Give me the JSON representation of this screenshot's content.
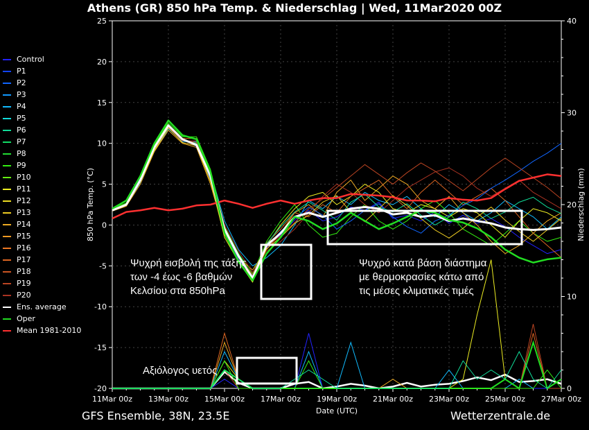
{
  "title": "Athens  (GR)  850 hPa Temp. & Niederschlag | Wed, 11Mar2020 00Z",
  "footer": {
    "model": "GFS Ensemble, 38N, 23.5E",
    "site": "Wetterzentrale.de"
  },
  "colors": {
    "background": "#000000",
    "box": "#ffffff",
    "mean": "#ff3030",
    "ens_avg": "#ffffff",
    "oper": "#22dd22"
  },
  "legend": [
    {
      "name": "Control",
      "color": "#2222ff"
    },
    {
      "name": "P1",
      "color": "#1144ff"
    },
    {
      "name": "P2",
      "color": "#1166ff"
    },
    {
      "name": "P3",
      "color": "#1199ff"
    },
    {
      "name": "P4",
      "color": "#11bbff"
    },
    {
      "name": "P5",
      "color": "#11dddd"
    },
    {
      "name": "P6",
      "color": "#11dd99"
    },
    {
      "name": "P7",
      "color": "#11dd66"
    },
    {
      "name": "P8",
      "color": "#22dd33"
    },
    {
      "name": "P9",
      "color": "#33ee11"
    },
    {
      "name": "P10",
      "color": "#66ee11"
    },
    {
      "name": "P11",
      "color": "#eeee22"
    },
    {
      "name": "P12",
      "color": "#eedd22"
    },
    {
      "name": "P13",
      "color": "#eecc22"
    },
    {
      "name": "P14",
      "color": "#eeaa22"
    },
    {
      "name": "P15",
      "color": "#ee9922"
    },
    {
      "name": "P16",
      "color": "#ee7722"
    },
    {
      "name": "P17",
      "color": "#dd6622"
    },
    {
      "name": "P18",
      "color": "#cc5522"
    },
    {
      "name": "P19",
      "color": "#bb4422"
    },
    {
      "name": "P20",
      "color": "#aa3322"
    },
    {
      "name": "Ens. average",
      "color": "#ffffff"
    },
    {
      "name": "Oper",
      "color": "#22dd22"
    },
    {
      "name": "Mean 1981-2010",
      "color": "#ff3030"
    }
  ],
  "annotations": [
    {
      "lines": [
        "Ψυχρή εισβολή της τάξης",
        "των -4 έως -6 βαθμών",
        "Κελσίου στα 850hPa"
      ]
    },
    {
      "lines": [
        "Ψυχρό κατά βάση διάστημα",
        "με θερμοκρασίες κάτω από",
        "τις μέσες κλιματικές τιμές"
      ]
    },
    {
      "lines": [
        "Αξιόλογος υετός"
      ]
    }
  ],
  "chart_data": {
    "type": "line",
    "xlabel": "Date (UTC)",
    "ylabel": "850 hPa Temp. (°C)",
    "y2label": "Niederschlag (mm)",
    "ylim": [
      -20,
      25
    ],
    "y2lim": [
      0,
      40
    ],
    "yticks": [
      "25",
      "20",
      "15",
      "10",
      "5",
      "0",
      "-5",
      "-10",
      "-15",
      "-20"
    ],
    "y2ticks": [
      "40",
      "30",
      "20",
      "10",
      "0"
    ],
    "xticks": [
      "11Mar 00z",
      "13Mar 00z",
      "15Mar 00z",
      "17Mar 00z",
      "19Mar 00z",
      "21Mar 00z",
      "23Mar 00z",
      "25Mar 00z",
      "27Mar 00z"
    ],
    "x_days": [
      0,
      0.5,
      1,
      1.5,
      2,
      2.5,
      3,
      3.5,
      4,
      4.5,
      5,
      5.5,
      6,
      6.5,
      7,
      7.5,
      8,
      8.5,
      9,
      9.5,
      10,
      10.5,
      11,
      11.5,
      12,
      12.5,
      13,
      13.5,
      14,
      14.5,
      15,
      15.5,
      16
    ],
    "series": [
      {
        "name": "Mean 1981-2010",
        "color": "#ff3030",
        "values": [
          0.8,
          1.6,
          1.8,
          2.1,
          1.8,
          2.0,
          2.4,
          2.5,
          3.0,
          2.6,
          2.1,
          2.6,
          3.0,
          2.6,
          3.0,
          3.3,
          3.3,
          3.8,
          3.7,
          3.6,
          3.4,
          3.0,
          3.0,
          2.9,
          3.3,
          3.1,
          3.0,
          3.3,
          4.4,
          5.4,
          5.8,
          6.2,
          6.0
        ]
      },
      {
        "name": "Ens. average",
        "color": "#ffffff",
        "values": [
          1.8,
          2.5,
          5.5,
          9.5,
          12.2,
          10.5,
          9.8,
          6.0,
          -0.5,
          -3.8,
          -6.5,
          -2.5,
          -1.0,
          1.0,
          1.5,
          1.0,
          1.5,
          2.0,
          2.2,
          2.0,
          1.3,
          1.5,
          1.0,
          1.2,
          0.5,
          0.8,
          0.5,
          0.2,
          -0.3,
          -0.5,
          -0.6,
          -0.5,
          -0.3
        ]
      },
      {
        "name": "Oper",
        "color": "#22dd22",
        "values": [
          2.0,
          3.0,
          6.0,
          10.0,
          12.8,
          11.0,
          10.5,
          6.5,
          -1.0,
          -4.5,
          -6.8,
          -3.5,
          -1.5,
          1.0,
          0.5,
          -0.5,
          0.2,
          1.5,
          0.5,
          -0.5,
          0.2,
          1.0,
          1.8,
          1.5,
          0.6,
          0.3,
          -0.4,
          -1.5,
          -3.0,
          -4.0,
          -4.6,
          -4.2,
          -4.0
        ]
      },
      {
        "name": "Control",
        "color": "#2222ff",
        "values": [
          1.8,
          2.6,
          5.8,
          9.4,
          12.0,
          10.6,
          9.6,
          5.8,
          -0.8,
          -4.0,
          -6.2,
          -2.8,
          -1.2,
          0.6,
          1.8,
          0.5,
          1.0,
          2.2,
          1.8,
          2.8,
          0.8,
          1.2,
          0.5,
          1.6,
          0.2,
          1.2,
          0.2,
          0.8,
          -0.2,
          -1.5,
          -2.5,
          -3.5,
          -3.0
        ]
      },
      {
        "name": "P4",
        "color": "#11bbff",
        "values": [
          1.8,
          2.4,
          5.2,
          9.0,
          11.8,
          10.2,
          10.2,
          6.5,
          0.5,
          -3.0,
          -5.0,
          -4.0,
          -2.5,
          0.0,
          3.0,
          2.0,
          3.5,
          2.5,
          4.0,
          3.0,
          2.5,
          3.5,
          2.0,
          1.0,
          2.5,
          1.5,
          0.5,
          1.5,
          3.0,
          2.0,
          1.0,
          -0.5,
          1.0
        ]
      },
      {
        "name": "P9",
        "color": "#33ee11",
        "values": [
          2.0,
          2.7,
          5.6,
          9.8,
          12.5,
          10.8,
          10.8,
          6.8,
          -0.2,
          -3.5,
          -6.0,
          -2.0,
          0.5,
          2.5,
          0.0,
          -1.5,
          -1.0,
          1.0,
          2.5,
          0.5,
          -0.5,
          0.5,
          2.0,
          3.0,
          1.5,
          -0.5,
          -1.5,
          -2.5,
          -1.0,
          0.5,
          -1.0,
          -2.0,
          -1.5
        ]
      },
      {
        "name": "P11",
        "color": "#eeee22",
        "values": [
          1.9,
          2.5,
          5.4,
          9.2,
          12.2,
          10.4,
          10.0,
          5.5,
          -1.5,
          -4.5,
          -7.0,
          -2.5,
          0.0,
          2.0,
          3.5,
          4.0,
          2.5,
          3.5,
          5.0,
          4.0,
          2.0,
          1.5,
          2.5,
          2.0,
          1.0,
          2.0,
          1.5,
          0.0,
          -1.5,
          0.5,
          2.0,
          1.5,
          0.5
        ]
      },
      {
        "name": "P14",
        "color": "#eeaa22",
        "values": [
          1.7,
          2.3,
          5.0,
          9.0,
          11.6,
          10.0,
          9.5,
          5.0,
          -1.0,
          -4.0,
          -5.5,
          -3.0,
          -1.0,
          1.5,
          2.5,
          1.0,
          4.0,
          5.5,
          3.0,
          4.5,
          6.0,
          5.0,
          3.0,
          2.0,
          3.5,
          1.5,
          0.0,
          -2.0,
          -3.5,
          -2.5,
          -1.0,
          0.5,
          1.5
        ]
      },
      {
        "name": "P17",
        "color": "#dd6622",
        "values": [
          1.8,
          2.6,
          5.5,
          9.6,
          12.3,
          10.6,
          10.6,
          6.0,
          -0.6,
          -4.5,
          -6.5,
          -2.2,
          -0.5,
          1.5,
          1.0,
          2.5,
          1.5,
          3.5,
          4.5,
          5.5,
          3.5,
          2.0,
          4.0,
          5.5,
          4.0,
          2.5,
          3.5,
          4.5,
          3.0,
          1.0,
          -1.0,
          -2.5,
          -4.0
        ]
      },
      {
        "name": "P20",
        "color": "#aa3322",
        "values": [
          1.9,
          2.4,
          5.3,
          9.3,
          12.0,
          10.3,
          10.3,
          6.2,
          0.0,
          -3.2,
          -5.8,
          -3.2,
          -2.0,
          -0.5,
          1.5,
          3.5,
          5.0,
          4.0,
          2.5,
          1.5,
          3.0,
          4.5,
          5.5,
          6.5,
          7.0,
          6.0,
          4.5,
          3.5,
          4.5,
          5.5,
          4.0,
          3.0,
          2.0
        ]
      },
      {
        "name": "P2",
        "color": "#1166ff",
        "values": [
          1.8,
          2.5,
          5.6,
          9.3,
          12.1,
          10.5,
          9.9,
          5.6,
          -0.9,
          -4.2,
          -6.4,
          -2.6,
          -0.8,
          0.8,
          2.2,
          1.2,
          -0.5,
          0.5,
          1.8,
          2.6,
          1.0,
          -0.2,
          -1.0,
          0.5,
          1.2,
          2.4,
          3.2,
          4.5,
          5.5,
          6.6,
          7.8,
          8.8,
          10.0
        ]
      },
      {
        "name": "P6",
        "color": "#11dd99",
        "values": [
          1.8,
          2.5,
          5.5,
          9.5,
          12.2,
          10.5,
          10.0,
          6.2,
          -0.3,
          -3.6,
          -6.3,
          -2.3,
          -0.2,
          1.6,
          2.8,
          1.8,
          0.6,
          2.8,
          3.8,
          2.2,
          1.6,
          2.6,
          1.2,
          0.0,
          1.0,
          2.8,
          2.0,
          0.8,
          1.6,
          2.8,
          3.4,
          2.2,
          1.4
        ]
      },
      {
        "name": "P13",
        "color": "#eecc22",
        "values": [
          1.8,
          2.4,
          5.3,
          9.1,
          11.9,
          10.1,
          9.7,
          5.3,
          -1.2,
          -4.3,
          -6.8,
          -2.9,
          -1.5,
          0.2,
          1.2,
          2.8,
          3.6,
          1.6,
          0.4,
          2.0,
          3.6,
          2.4,
          0.8,
          -0.6,
          -1.6,
          -0.4,
          1.0,
          2.2,
          0.6,
          -0.8,
          -2.0,
          -0.6,
          0.8
        ]
      },
      {
        "name": "P19",
        "color": "#bb4422",
        "values": [
          1.8,
          2.5,
          5.4,
          9.4,
          12.1,
          10.4,
          10.1,
          6.1,
          -0.4,
          -3.9,
          -6.1,
          -2.7,
          -1.3,
          0.3,
          2.0,
          3.2,
          4.6,
          6.0,
          7.4,
          6.2,
          5.0,
          6.4,
          7.6,
          6.6,
          5.4,
          4.2,
          5.6,
          7.0,
          8.2,
          7.0,
          5.8,
          4.6,
          3.2
        ]
      }
    ],
    "precip_series": [
      {
        "name": "Ens. average",
        "color": "#ffffff",
        "values": [
          0,
          0,
          0,
          0,
          0,
          0,
          0,
          0,
          1.8,
          0.6,
          0,
          0,
          0,
          0.5,
          0.7,
          0,
          0.2,
          0.5,
          0.3,
          0,
          0.2,
          0.6,
          0.2,
          0.4,
          0.5,
          0.8,
          1.2,
          0.9,
          1.5,
          0.7,
          0.8,
          1.0,
          0.5
        ]
      },
      {
        "name": "P14",
        "color": "#eeaa22",
        "values": [
          0,
          0,
          0,
          0,
          0,
          0,
          0,
          0,
          5,
          1,
          0,
          0,
          0,
          0,
          0,
          0,
          0,
          0,
          0,
          0,
          1,
          0,
          0,
          0,
          0,
          0,
          0,
          0,
          0,
          0,
          0,
          0,
          0
        ]
      },
      {
        "name": "P17",
        "color": "#dd6622",
        "values": [
          0,
          0,
          0,
          0,
          0,
          0,
          0,
          0,
          6,
          1,
          0,
          0,
          0,
          0,
          0,
          0,
          0,
          0,
          0,
          0,
          0,
          0,
          0,
          0,
          0,
          0,
          0,
          0,
          0,
          0,
          6,
          0,
          0
        ]
      },
      {
        "name": "P11",
        "color": "#eeee22",
        "values": [
          0,
          0,
          0,
          0,
          0,
          0,
          0,
          0,
          3,
          1,
          0,
          0,
          0,
          0,
          0,
          0,
          0,
          0,
          0,
          0,
          0,
          0,
          0,
          0,
          0,
          1,
          8,
          14,
          1,
          0,
          0,
          0,
          0
        ]
      },
      {
        "name": "P4",
        "color": "#11bbff",
        "values": [
          0,
          0,
          0,
          0,
          0,
          0,
          0,
          0,
          4,
          1,
          0,
          0,
          0,
          0,
          4,
          0,
          0,
          5,
          0,
          0,
          0,
          0,
          0,
          0,
          2,
          0,
          0,
          0,
          0,
          1,
          0,
          0,
          0
        ]
      },
      {
        "name": "Control",
        "color": "#2222ff",
        "values": [
          0,
          0,
          0,
          0,
          0,
          0,
          0,
          0,
          1,
          0,
          0,
          0,
          0,
          0,
          6,
          0,
          0,
          0,
          0,
          0,
          0,
          0,
          0,
          0,
          0,
          0,
          0,
          0,
          0,
          0,
          0,
          0,
          0
        ]
      },
      {
        "name": "P19",
        "color": "#bb4422",
        "values": [
          0,
          0,
          0,
          0,
          0,
          0,
          0,
          0,
          2,
          0,
          0,
          0,
          0,
          0,
          0,
          0,
          0,
          0,
          0,
          0,
          0,
          0,
          0,
          0,
          0,
          0,
          0,
          0,
          0,
          0,
          7,
          0,
          0
        ]
      },
      {
        "name": "Oper",
        "color": "#22dd22",
        "values": [
          0,
          0,
          0,
          0,
          0,
          0,
          0,
          0,
          2,
          1,
          0,
          0,
          0,
          0,
          0,
          0,
          0,
          0,
          0,
          0,
          0,
          0,
          0,
          0,
          0,
          0,
          0,
          0,
          1,
          0,
          5,
          0,
          1
        ]
      },
      {
        "name": "P9",
        "color": "#33ee11",
        "values": [
          0,
          0,
          0,
          0,
          0,
          0,
          0,
          0,
          3,
          0,
          0,
          0,
          0,
          0,
          3,
          0,
          0,
          0,
          0,
          0,
          0,
          0,
          0,
          0,
          0,
          0,
          0,
          0,
          0,
          0,
          0,
          2,
          0
        ]
      },
      {
        "name": "P6",
        "color": "#11dd99",
        "values": [
          0,
          0,
          0,
          0,
          0,
          0,
          0,
          0,
          2,
          1,
          0,
          0,
          0,
          1,
          2,
          1,
          0,
          0,
          0,
          0,
          0,
          0,
          0,
          0,
          0,
          3,
          1,
          2,
          1,
          4,
          1,
          0,
          2
        ]
      }
    ]
  }
}
